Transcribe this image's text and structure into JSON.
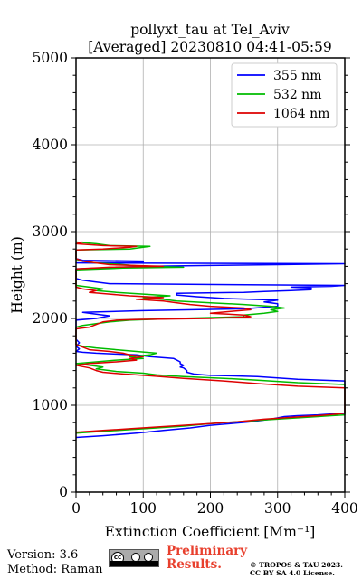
{
  "chart_data": {
    "type": "line",
    "title": "pollyxt_tau at Tel_Aviv",
    "subtitle": "[Averaged] 20230810 04:41-05:59",
    "xlabel": "Extinction Coefficient [Mm⁻¹]",
    "ylabel": "Height (m)",
    "xlim": [
      0,
      400
    ],
    "ylim": [
      0,
      5000
    ],
    "xticks": [
      0,
      100,
      200,
      300,
      400
    ],
    "yticks": [
      0,
      1000,
      2000,
      3000,
      4000,
      5000
    ],
    "grid": true,
    "legend_position": "top-right",
    "series": [
      {
        "name": "355 nm",
        "color": "#0000ff",
        "points": [
          [
            0,
            630
          ],
          [
            40,
            650
          ],
          [
            90,
            680
          ],
          [
            130,
            710
          ],
          [
            170,
            740
          ],
          [
            200,
            770
          ],
          [
            230,
            790
          ],
          [
            260,
            810
          ],
          [
            290,
            840
          ],
          [
            310,
            870
          ],
          [
            330,
            880
          ],
          [
            360,
            890
          ],
          [
            380,
            900
          ],
          [
            400,
            905
          ],
          [
            400,
            1280
          ],
          [
            330,
            1300
          ],
          [
            270,
            1330
          ],
          [
            230,
            1340
          ],
          [
            200,
            1345
          ],
          [
            190,
            1350
          ],
          [
            175,
            1360
          ],
          [
            165,
            1380
          ],
          [
            165,
            1400
          ],
          [
            160,
            1430
          ],
          [
            155,
            1440
          ],
          [
            160,
            1460
          ],
          [
            155,
            1480
          ],
          [
            155,
            1500
          ],
          [
            150,
            1520
          ],
          [
            145,
            1540
          ],
          [
            110,
            1560
          ],
          [
            90,
            1580
          ],
          [
            60,
            1590
          ],
          [
            30,
            1600
          ],
          [
            10,
            1610
          ],
          [
            0,
            1620
          ],
          [
            5,
            1650
          ],
          [
            0,
            1680
          ],
          [
            5,
            1720
          ],
          [
            0,
            1760
          ],
          [
            0,
            1980
          ],
          [
            30,
            2000
          ],
          [
            50,
            2030
          ],
          [
            30,
            2050
          ],
          [
            10,
            2070
          ],
          [
            100,
            2090
          ],
          [
            250,
            2110
          ],
          [
            300,
            2140
          ],
          [
            300,
            2170
          ],
          [
            280,
            2190
          ],
          [
            300,
            2210
          ],
          [
            220,
            2230
          ],
          [
            180,
            2250
          ],
          [
            150,
            2270
          ],
          [
            150,
            2290
          ],
          [
            250,
            2300
          ],
          [
            280,
            2310
          ],
          [
            320,
            2320
          ],
          [
            350,
            2330
          ],
          [
            350,
            2350
          ],
          [
            320,
            2360
          ],
          [
            380,
            2370
          ],
          [
            400,
            2380
          ],
          [
            50,
            2400
          ],
          [
            30,
            2420
          ],
          [
            10,
            2440
          ],
          [
            0,
            2460
          ],
          [
            0,
            2570
          ],
          [
            100,
            2600
          ],
          [
            200,
            2610
          ],
          [
            300,
            2620
          ],
          [
            400,
            2630
          ],
          [
            0,
            2640
          ],
          [
            100,
            2650
          ],
          [
            100,
            2660
          ],
          [
            10,
            2670
          ],
          [
            0,
            2690
          ],
          [
            0,
            2780
          ]
        ]
      },
      {
        "name": "532 nm",
        "color": "#00bb00",
        "points": [
          [
            0,
            680
          ],
          [
            40,
            700
          ],
          [
            80,
            720
          ],
          [
            120,
            740
          ],
          [
            160,
            760
          ],
          [
            200,
            790
          ],
          [
            240,
            810
          ],
          [
            280,
            830
          ],
          [
            320,
            850
          ],
          [
            360,
            870
          ],
          [
            380,
            880
          ],
          [
            400,
            890
          ],
          [
            400,
            1240
          ],
          [
            330,
            1260
          ],
          [
            270,
            1290
          ],
          [
            220,
            1310
          ],
          [
            160,
            1330
          ],
          [
            120,
            1350
          ],
          [
            100,
            1370
          ],
          [
            60,
            1390
          ],
          [
            30,
            1420
          ],
          [
            40,
            1440
          ],
          [
            20,
            1460
          ],
          [
            0,
            1480
          ],
          [
            30,
            1500
          ],
          [
            60,
            1520
          ],
          [
            100,
            1540
          ],
          [
            80,
            1560
          ],
          [
            110,
            1580
          ],
          [
            120,
            1600
          ],
          [
            90,
            1620
          ],
          [
            60,
            1640
          ],
          [
            30,
            1660
          ],
          [
            10,
            1680
          ],
          [
            0,
            1700
          ],
          [
            0,
            1900
          ],
          [
            10,
            1920
          ],
          [
            30,
            1940
          ],
          [
            50,
            1960
          ],
          [
            80,
            1980
          ],
          [
            150,
            2000
          ],
          [
            250,
            2020
          ],
          [
            250,
            2040
          ],
          [
            280,
            2060
          ],
          [
            300,
            2080
          ],
          [
            290,
            2100
          ],
          [
            310,
            2120
          ],
          [
            290,
            2140
          ],
          [
            250,
            2160
          ],
          [
            200,
            2180
          ],
          [
            150,
            2200
          ],
          [
            130,
            2220
          ],
          [
            100,
            2240
          ],
          [
            140,
            2260
          ],
          [
            100,
            2280
          ],
          [
            60,
            2300
          ],
          [
            30,
            2320
          ],
          [
            40,
            2340
          ],
          [
            20,
            2360
          ],
          [
            0,
            2380
          ],
          [
            0,
            2560
          ],
          [
            70,
            2580
          ],
          [
            160,
            2590
          ],
          [
            100,
            2600
          ],
          [
            70,
            2620
          ],
          [
            30,
            2640
          ],
          [
            10,
            2660
          ],
          [
            0,
            2680
          ],
          [
            0,
            2790
          ],
          [
            80,
            2800
          ],
          [
            100,
            2820
          ],
          [
            110,
            2830
          ],
          [
            50,
            2840
          ],
          [
            30,
            2860
          ],
          [
            0,
            2880
          ]
        ]
      },
      {
        "name": "1064 nm",
        "color": "#dd0000",
        "points": [
          [
            0,
            690
          ],
          [
            40,
            710
          ],
          [
            80,
            730
          ],
          [
            120,
            750
          ],
          [
            160,
            770
          ],
          [
            200,
            790
          ],
          [
            240,
            810
          ],
          [
            280,
            840
          ],
          [
            320,
            860
          ],
          [
            360,
            880
          ],
          [
            390,
            900
          ],
          [
            400,
            910
          ],
          [
            400,
            1200
          ],
          [
            330,
            1220
          ],
          [
            270,
            1250
          ],
          [
            220,
            1280
          ],
          [
            160,
            1310
          ],
          [
            110,
            1340
          ],
          [
            70,
            1360
          ],
          [
            40,
            1380
          ],
          [
            30,
            1400
          ],
          [
            20,
            1430
          ],
          [
            0,
            1460
          ],
          [
            20,
            1480
          ],
          [
            60,
            1500
          ],
          [
            90,
            1520
          ],
          [
            80,
            1540
          ],
          [
            100,
            1560
          ],
          [
            80,
            1580
          ],
          [
            70,
            1600
          ],
          [
            50,
            1620
          ],
          [
            20,
            1640
          ],
          [
            10,
            1670
          ],
          [
            0,
            1700
          ],
          [
            0,
            1880
          ],
          [
            20,
            1900
          ],
          [
            30,
            1930
          ],
          [
            40,
            1960
          ],
          [
            60,
            1980
          ],
          [
            100,
            1990
          ],
          [
            200,
            2000
          ],
          [
            260,
            2020
          ],
          [
            250,
            2040
          ],
          [
            200,
            2060
          ],
          [
            230,
            2080
          ],
          [
            260,
            2100
          ],
          [
            250,
            2120
          ],
          [
            200,
            2140
          ],
          [
            170,
            2160
          ],
          [
            150,
            2180
          ],
          [
            130,
            2200
          ],
          [
            90,
            2220
          ],
          [
            130,
            2240
          ],
          [
            80,
            2260
          ],
          [
            50,
            2280
          ],
          [
            20,
            2300
          ],
          [
            30,
            2320
          ],
          [
            10,
            2340
          ],
          [
            0,
            2360
          ],
          [
            0,
            2570
          ],
          [
            50,
            2590
          ],
          [
            130,
            2600
          ],
          [
            50,
            2620
          ],
          [
            30,
            2640
          ],
          [
            10,
            2660
          ],
          [
            0,
            2690
          ],
          [
            0,
            2790
          ],
          [
            40,
            2800
          ],
          [
            80,
            2820
          ],
          [
            90,
            2830
          ],
          [
            40,
            2840
          ],
          [
            0,
            2860
          ],
          [
            10,
            2880
          ]
        ]
      }
    ]
  },
  "footer": {
    "version": "Version: 3.6",
    "method": "Method: Raman",
    "preliminary_line1": "Preliminary",
    "preliminary_line2": "Results.",
    "copyright_line1": "© TROPOS & TAU 2023.",
    "copyright_line2": "CC BY SA 4.0 License.",
    "license_badge_icon": "cc-by-sa-icon",
    "colors": {
      "preliminary": "#e8402e"
    }
  }
}
